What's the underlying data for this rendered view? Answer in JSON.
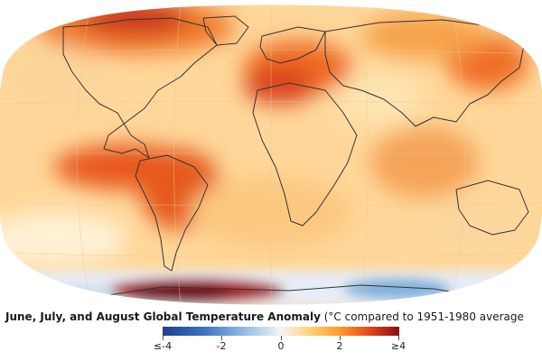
{
  "title": {
    "main": "June, July, and August Global Temperature Anomaly",
    "sub": "(°C compared to 1951-1980 average"
  },
  "legend": {
    "ticks": [
      "≤-4",
      "-2",
      "0",
      "2",
      "≥4"
    ],
    "colors": [
      "#1d3f8f",
      "#3d74c4",
      "#f4f4f4",
      "#ff9a2b",
      "#8b0a16"
    ]
  }
}
